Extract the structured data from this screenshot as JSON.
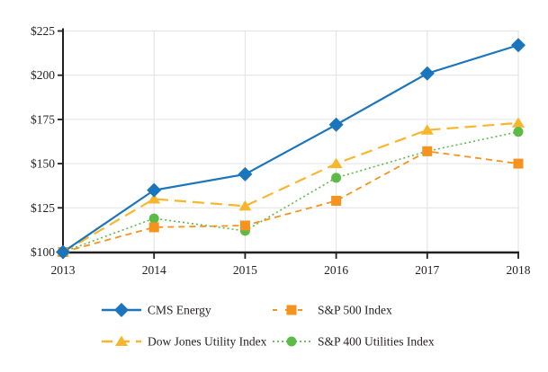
{
  "chart_data": {
    "type": "line",
    "title": "",
    "xlabel": "",
    "ylabel": "",
    "x_ticks": [
      "2013",
      "2014",
      "2015",
      "2016",
      "2017",
      "2018"
    ],
    "y_ticks": [
      "$100",
      "$125",
      "$150",
      "$175",
      "$200",
      "$225"
    ],
    "ylim": [
      100,
      225
    ],
    "grid": true,
    "legend_position": "bottom",
    "series": [
      {
        "name": "CMS Energy",
        "values": [
          100,
          135,
          144,
          172,
          201,
          217
        ],
        "color": "#1B75BC",
        "marker": "diamond",
        "line_style": "solid"
      },
      {
        "name": "S&P 500 Index",
        "values": [
          100,
          114,
          115,
          129,
          157,
          150
        ],
        "color": "#F6921E",
        "marker": "square",
        "line_style": "dashed"
      },
      {
        "name": "Dow Jones Utility Index",
        "values": [
          100,
          130,
          126,
          150,
          169,
          173
        ],
        "color": "#F8B62D",
        "marker": "triangle",
        "line_style": "long-dash"
      },
      {
        "name": "S&P 400 Utilities Index",
        "values": [
          100,
          119,
          112,
          142,
          157,
          168
        ],
        "color": "#5CBA47",
        "marker": "circle",
        "line_style": "dotted"
      }
    ],
    "colors": {
      "axis": "#231F20",
      "gridline": "#E2E2E2",
      "text": "#231F20",
      "background": "#FFFFFF"
    }
  }
}
